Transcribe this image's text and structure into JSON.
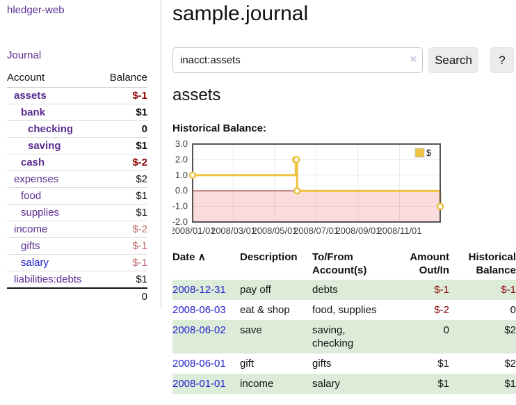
{
  "colors": {
    "link_purple": "#5b2d91",
    "link_blue": "#2222cc",
    "negative_dark": "#8b0000",
    "negative_soft": "#bb6a6a",
    "row_green": "#ddecd9",
    "series_gold": "#edc240",
    "zero_line_red": "#8b1a1a",
    "below_zero_pink": "#fbdcdc",
    "grid_border": "#545454"
  },
  "sidebar": {
    "app_title": "hledger-web",
    "journal_link": "Journal",
    "accounts_table": {
      "headers": {
        "account": "Account",
        "balance": "Balance"
      },
      "rows": [
        {
          "name": "assets",
          "balance": "$-1",
          "indent": 0,
          "bold": true,
          "neg": "dark"
        },
        {
          "name": "bank",
          "balance": "$1",
          "indent": 1,
          "bold": true,
          "neg": ""
        },
        {
          "name": "checking",
          "balance": "0",
          "indent": 2,
          "bold": true,
          "neg": ""
        },
        {
          "name": "saving",
          "balance": "$1",
          "indent": 2,
          "bold": true,
          "neg": ""
        },
        {
          "name": "cash",
          "balance": "$-2",
          "indent": 1,
          "bold": true,
          "neg": "dark"
        },
        {
          "name": "expenses",
          "balance": "$2",
          "indent": 0,
          "bold": false,
          "neg": ""
        },
        {
          "name": "food",
          "balance": "$1",
          "indent": 1,
          "bold": false,
          "neg": ""
        },
        {
          "name": "supplies",
          "balance": "$1",
          "indent": 1,
          "bold": false,
          "neg": ""
        },
        {
          "name": "income",
          "balance": "$-2",
          "indent": 0,
          "bold": false,
          "neg": "soft"
        },
        {
          "name": "gifts",
          "balance": "$-1",
          "indent": 1,
          "bold": false,
          "neg": "soft"
        },
        {
          "name": "salary",
          "balance": "$-1",
          "indent": 1,
          "bold": false,
          "neg": "soft",
          "blue": true
        },
        {
          "name": "liabilities:debts",
          "balance": "$1",
          "indent": 0,
          "bold": false,
          "neg": ""
        }
      ],
      "total": "0"
    }
  },
  "main": {
    "title": "sample.journal",
    "search": {
      "value": "inacct:assets",
      "clear_label": "×",
      "button_label": "Search",
      "help_label": "?"
    },
    "account_heading": "assets",
    "chart_heading": "Historical Balance:",
    "register": {
      "headers": [
        "Date",
        "Description",
        "To/From Account(s)",
        "Amount Out/In",
        "Historical Balance"
      ],
      "sort_icon": "∧",
      "rows": [
        {
          "date": "2008-12-31",
          "description": "pay off",
          "accounts": "debts",
          "amount": "$-1",
          "amount_neg": true,
          "balance": "$-1",
          "balance_neg": true
        },
        {
          "date": "2008-06-03",
          "description": "eat & shop",
          "accounts": "food, supplies",
          "amount": "$-2",
          "amount_neg": true,
          "balance": "0",
          "balance_neg": false
        },
        {
          "date": "2008-06-02",
          "description": "save",
          "accounts": "saving, checking",
          "amount": "0",
          "amount_neg": false,
          "balance": "$2",
          "balance_neg": false
        },
        {
          "date": "2008-06-01",
          "description": "gift",
          "accounts": "gifts",
          "amount": "$1",
          "amount_neg": false,
          "balance": "$2",
          "balance_neg": false
        },
        {
          "date": "2008-01-01",
          "description": "income",
          "accounts": "salary",
          "amount": "$1",
          "amount_neg": false,
          "balance": "$1",
          "balance_neg": false
        }
      ]
    }
  },
  "chart_data": {
    "type": "line",
    "step": true,
    "title": "Historical Balance:",
    "series": [
      {
        "name": "$",
        "points": [
          [
            "2008-01-01",
            1
          ],
          [
            "2008-06-01",
            2
          ],
          [
            "2008-06-02",
            2
          ],
          [
            "2008-06-03",
            0
          ],
          [
            "2008-12-31",
            -1
          ]
        ]
      }
    ],
    "x_range": [
      "2008-01-01",
      "2008-12-31"
    ],
    "x_ticks": [
      "2008/01/01",
      "2008/03/01",
      "2008/05/01",
      "2008/07/01",
      "2008/09/01",
      "2008/11/01"
    ],
    "y_ticks": [
      3.0,
      2.0,
      1.0,
      0.0,
      -1.0,
      -2.0
    ],
    "y_tick_labels": [
      "3.0",
      "2.0",
      "1.0",
      "0.0",
      "-1.0",
      "-2.0"
    ],
    "ylim": [
      -2,
      3
    ],
    "legend": {
      "label": "$",
      "position": "top-right"
    },
    "grid": true,
    "below_zero_shaded": true
  }
}
